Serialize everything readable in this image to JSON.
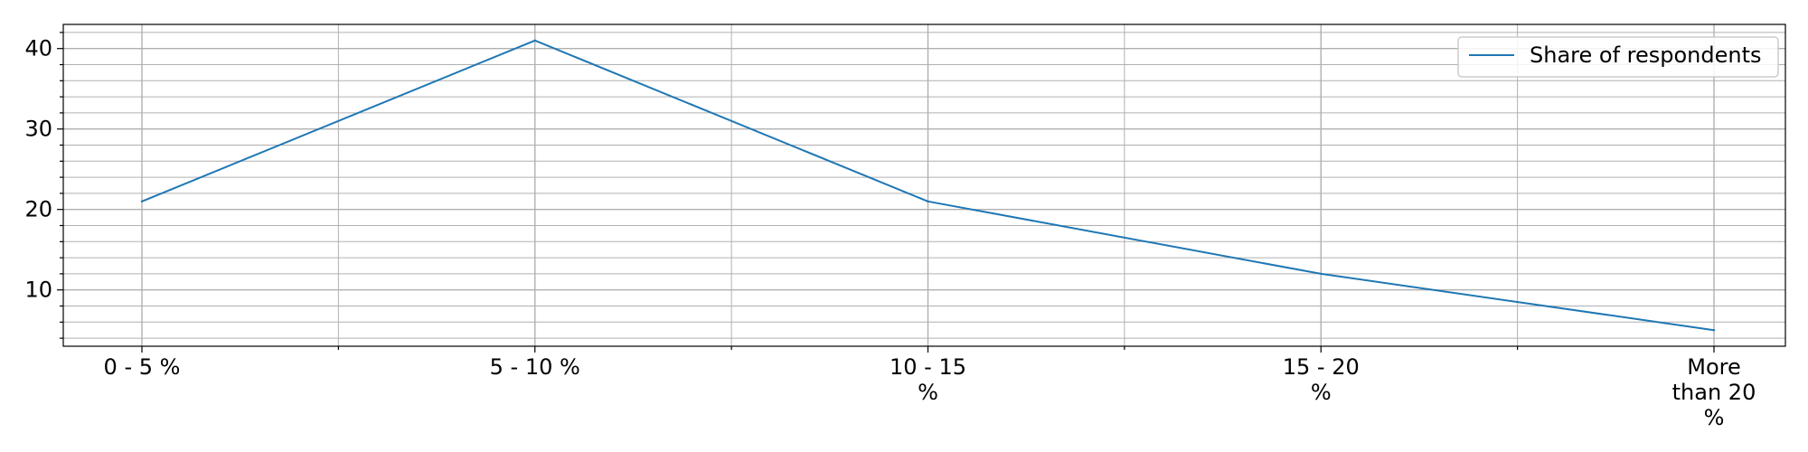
{
  "chart_data": {
    "type": "line",
    "categories": [
      "0 - 5 %",
      "5 - 10 %",
      "10 - 15 %",
      "15 - 20 %",
      "More than 20 %"
    ],
    "category_label_lines": [
      [
        "0 - 5 %"
      ],
      [
        "5 - 10 %"
      ],
      [
        "10 - 15",
        "%"
      ],
      [
        "15 - 20",
        "%"
      ],
      [
        "More",
        "than 20",
        "%"
      ]
    ],
    "series": [
      {
        "name": "Share of respondents",
        "values": [
          21,
          41,
          21,
          12,
          5
        ],
        "color": "#1f77b4"
      }
    ],
    "title": "",
    "xlabel": "",
    "ylabel": "",
    "ylim": [
      3,
      43
    ],
    "y_ticks": [
      10,
      20,
      30,
      40
    ],
    "y_minor_step": 2,
    "x_minor_per_category": 2,
    "grid": true,
    "legend_position": "top-right"
  }
}
